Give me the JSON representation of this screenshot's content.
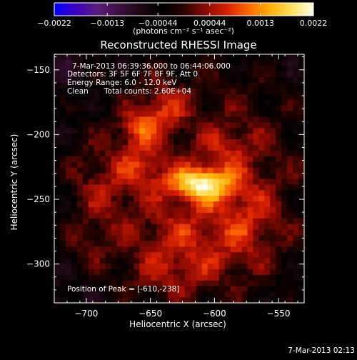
{
  "chart_data": {
    "type": "heatmap",
    "title": "Reconstructed RHESSI Image",
    "xlabel": "Heliocentric X (arcsec)",
    "ylabel": "Heliocentric Y (arcsec)",
    "xlim": [
      -725,
      -530
    ],
    "ylim": [
      -330,
      -138
    ],
    "x_ticks": [
      -700,
      -650,
      -600,
      -550
    ],
    "y_ticks": [
      -300,
      -250,
      -200,
      -150
    ],
    "x_tick_labels": [
      "−700",
      "−650",
      "−600",
      "−550"
    ],
    "y_tick_labels": [
      "−300",
      "−250",
      "−200",
      "−150"
    ],
    "colorbar": {
      "min": -0.0022,
      "max": 0.0022,
      "tick_values": [
        -0.0022,
        -0.0013,
        -0.00044,
        0.00044,
        0.0013,
        0.0022
      ],
      "tick_labels": [
        "−0.0022",
        "−0.0013",
        "−0.00044",
        "0.00044",
        "0.0013",
        "0.0022"
      ],
      "units_label": "(photons cm⁻² s⁻¹ asec⁻²)",
      "colormap": [
        "#0000ff",
        "#3a00c0",
        "#5a1e7a",
        "#3c1040",
        "#1e0812",
        "#000000",
        "#2a0400",
        "#8a0a00",
        "#d82000",
        "#ff6a00",
        "#ffb000",
        "#ffe060",
        "#ffffe8"
      ]
    },
    "annotations": [
      "7-Mar-2013 06:39:36.000 to 06:44:06.000",
      "Detectors: 3F 5F 6F 7F 8F 9F, Att 0",
      "Energy Range: 6.0 - 12.0 keV",
      "Clean",
      "Total counts: 2.60E+04"
    ],
    "peak_label": "Position of Peak = [-610,-238]",
    "peak": {
      "x": -610,
      "y": -238
    },
    "sources": [
      {
        "x": -610,
        "y": -238,
        "amplitude": 0.0021,
        "sigma_x": 17,
        "sigma_y": 9
      },
      {
        "x": -660,
        "y": -195,
        "amplitude": 0.0009,
        "sigma_x": 10,
        "sigma_y": 10
      },
      {
        "x": -640,
        "y": -180,
        "amplitude": 0.0008,
        "sigma_x": 12,
        "sigma_y": 14
      },
      {
        "x": -655,
        "y": -225,
        "amplitude": 0.0007,
        "sigma_x": 12,
        "sigma_y": 12
      },
      {
        "x": -590,
        "y": -210,
        "amplitude": 0.0006,
        "sigma_x": 14,
        "sigma_y": 12
      },
      {
        "x": -620,
        "y": -280,
        "amplitude": 0.0006,
        "sigma_x": 26,
        "sigma_y": 22
      },
      {
        "x": -575,
        "y": -265,
        "amplitude": 0.0006,
        "sigma_x": 16,
        "sigma_y": 26
      },
      {
        "x": -690,
        "y": -240,
        "amplitude": 0.0005,
        "sigma_x": 18,
        "sigma_y": 22
      },
      {
        "x": -700,
        "y": -285,
        "amplitude": 0.0004,
        "sigma_x": 14,
        "sigma_y": 14
      },
      {
        "x": -640,
        "y": -310,
        "amplitude": 0.0004,
        "sigma_x": 24,
        "sigma_y": 12
      }
    ]
  },
  "footer": {
    "timestamp": "7-Mar-2013 02:13"
  }
}
